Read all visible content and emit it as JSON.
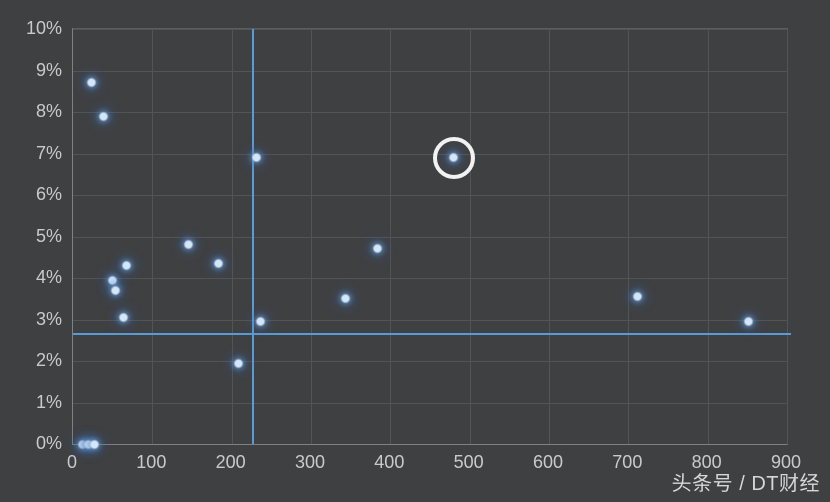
{
  "watermark": "头条号 / DT财经",
  "colors": {
    "background": "#3f4042",
    "gridline": "#525457",
    "axis_line": "#7e8185",
    "tick_label": "#c9cacc",
    "point_core": "#d6e6f6",
    "point_glow": "#3a6cac",
    "crosshair": "#5b9bd5",
    "annotation_circle": "#f2f2f2",
    "watermark_text": "#d6d7d9"
  },
  "chart_data": {
    "type": "scatter",
    "title": "",
    "xlabel": "",
    "ylabel": "",
    "xlim": [
      0,
      900
    ],
    "ylim": [
      0,
      10
    ],
    "x_ticks": [
      0,
      100,
      200,
      300,
      400,
      500,
      600,
      700,
      800,
      900
    ],
    "y_ticks": [
      0,
      1,
      2,
      3,
      4,
      5,
      6,
      7,
      8,
      9,
      10
    ],
    "y_tick_labels": [
      "0%",
      "1%",
      "2%",
      "3%",
      "4%",
      "5%",
      "6%",
      "7%",
      "8%",
      "9%",
      "10%"
    ],
    "grid": true,
    "legend": "none",
    "points": [
      {
        "x": 12,
        "y": 0.0
      },
      {
        "x": 20,
        "y": 0.0
      },
      {
        "x": 27,
        "y": 0.0
      },
      {
        "x": 23,
        "y": 8.7
      },
      {
        "x": 38,
        "y": 7.9
      },
      {
        "x": 50,
        "y": 3.95
      },
      {
        "x": 54,
        "y": 3.7
      },
      {
        "x": 64,
        "y": 3.05
      },
      {
        "x": 68,
        "y": 4.3
      },
      {
        "x": 146,
        "y": 4.8
      },
      {
        "x": 183,
        "y": 4.35
      },
      {
        "x": 208,
        "y": 1.95
      },
      {
        "x": 231,
        "y": 6.9
      },
      {
        "x": 236,
        "y": 2.95
      },
      {
        "x": 343,
        "y": 3.5
      },
      {
        "x": 384,
        "y": 4.7
      },
      {
        "x": 480,
        "y": 6.9,
        "circled": true
      },
      {
        "x": 712,
        "y": 3.55
      },
      {
        "x": 851,
        "y": 2.95
      }
    ],
    "annotations": [
      {
        "type": "circle",
        "x": 480,
        "y": 6.9,
        "label": "highlighted-point"
      }
    ],
    "reference_lines": {
      "vertical_x": 227,
      "horizontal_y": 2.65
    }
  }
}
